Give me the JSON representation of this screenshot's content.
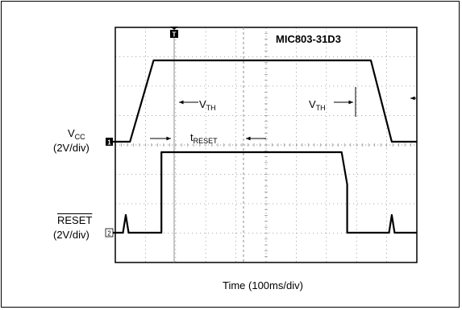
{
  "chart_data": {
    "type": "line",
    "title": "MIC803-31D3",
    "xlabel": "Time (100ms/div)",
    "x_divisions": 10,
    "y_divisions": 8,
    "grid": true,
    "channels": [
      {
        "marker": "1",
        "label_main": "V",
        "label_sub": "CC",
        "label_scale": "(2V/div)",
        "reference_div": 1,
        "points_div": [
          [
            0,
            1.0
          ],
          [
            0.7,
            1.0
          ],
          [
            1.55,
            3.0
          ],
          [
            9.35,
            3.0
          ],
          [
            10.1,
            1.0
          ],
          [
            11,
            1.0
          ]
        ]
      },
      {
        "marker": "2",
        "label_main": "RESET",
        "label_scale": "(2V/div)",
        "reference_div": 1,
        "points_div": [
          [
            0,
            1.0
          ],
          [
            0.45,
            1.0
          ],
          [
            0.55,
            1.22
          ],
          [
            0.65,
            1.0
          ],
          [
            1.83,
            1.0
          ],
          [
            1.83,
            1.0
          ],
          [
            1.83,
            2.0
          ],
          [
            8.3,
            2.0
          ],
          [
            8.5,
            1.6
          ],
          [
            8.5,
            1.0
          ],
          [
            10.0,
            1.0
          ],
          [
            10.1,
            1.22
          ],
          [
            10.2,
            1.0
          ],
          [
            11,
            1.0
          ]
        ]
      }
    ],
    "annotations": {
      "vth_rising": {
        "main": "V",
        "sub": "TH"
      },
      "vth_falling": {
        "main": "V",
        "sub": "TH"
      },
      "treset": {
        "main": "t",
        "sub": "RESET"
      },
      "trigger_marker": "T"
    }
  },
  "colors": {
    "trace": "#000000",
    "grid": "#9a9a9a",
    "border": "#000000",
    "background": "#ffffff"
  }
}
